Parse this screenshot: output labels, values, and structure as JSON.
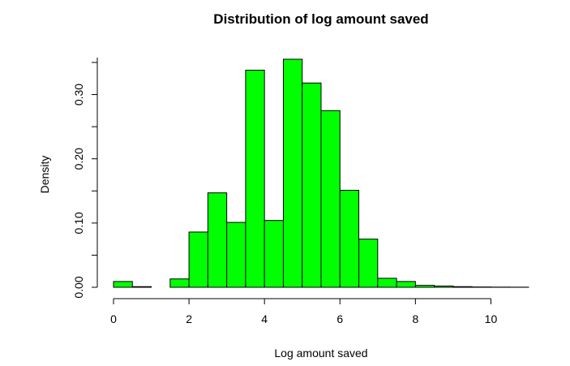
{
  "chart_data": {
    "type": "bar",
    "title": "Distribution of log amount saved",
    "xlabel": "Log amount saved",
    "ylabel": "Density",
    "bin_width": 0.5,
    "bins": [
      {
        "x0": 0.0,
        "x1": 0.5,
        "density": 0.009
      },
      {
        "x0": 0.5,
        "x1": 1.0,
        "density": 0.001
      },
      {
        "x0": 1.0,
        "x1": 1.5,
        "density": 0.0
      },
      {
        "x0": 1.5,
        "x1": 2.0,
        "density": 0.013
      },
      {
        "x0": 2.0,
        "x1": 2.5,
        "density": 0.086
      },
      {
        "x0": 2.5,
        "x1": 3.0,
        "density": 0.147
      },
      {
        "x0": 3.0,
        "x1": 3.5,
        "density": 0.101
      },
      {
        "x0": 3.5,
        "x1": 4.0,
        "density": 0.338
      },
      {
        "x0": 4.0,
        "x1": 4.5,
        "density": 0.104
      },
      {
        "x0": 4.5,
        "x1": 5.0,
        "density": 0.355
      },
      {
        "x0": 5.0,
        "x1": 5.5,
        "density": 0.318
      },
      {
        "x0": 5.5,
        "x1": 6.0,
        "density": 0.275
      },
      {
        "x0": 6.0,
        "x1": 6.5,
        "density": 0.151
      },
      {
        "x0": 6.5,
        "x1": 7.0,
        "density": 0.075
      },
      {
        "x0": 7.0,
        "x1": 7.5,
        "density": 0.014
      },
      {
        "x0": 7.5,
        "x1": 8.0,
        "density": 0.009
      },
      {
        "x0": 8.0,
        "x1": 8.5,
        "density": 0.003
      },
      {
        "x0": 8.5,
        "x1": 9.0,
        "density": 0.002
      },
      {
        "x0": 9.0,
        "x1": 9.5,
        "density": 0.001
      },
      {
        "x0": 9.5,
        "x1": 10.0,
        "density": 0.0005
      },
      {
        "x0": 10.0,
        "x1": 10.5,
        "density": 0.0003
      },
      {
        "x0": 10.5,
        "x1": 11.0,
        "density": 0.0002
      }
    ],
    "xlim": [
      0,
      11
    ],
    "ylim": [
      0,
      0.355
    ],
    "x_ticks": [
      0,
      2,
      4,
      6,
      8,
      10
    ],
    "x_tick_labels": [
      "0",
      "2",
      "4",
      "6",
      "8",
      "10"
    ],
    "y_ticks": [
      0.0,
      0.1,
      0.2,
      0.3
    ],
    "y_tick_labels": [
      "0.00",
      "0.10",
      "0.20",
      "0.30"
    ],
    "bar_color": "#00ff00",
    "bar_edge_color": "#000000",
    "grid": false,
    "legend": "none"
  }
}
